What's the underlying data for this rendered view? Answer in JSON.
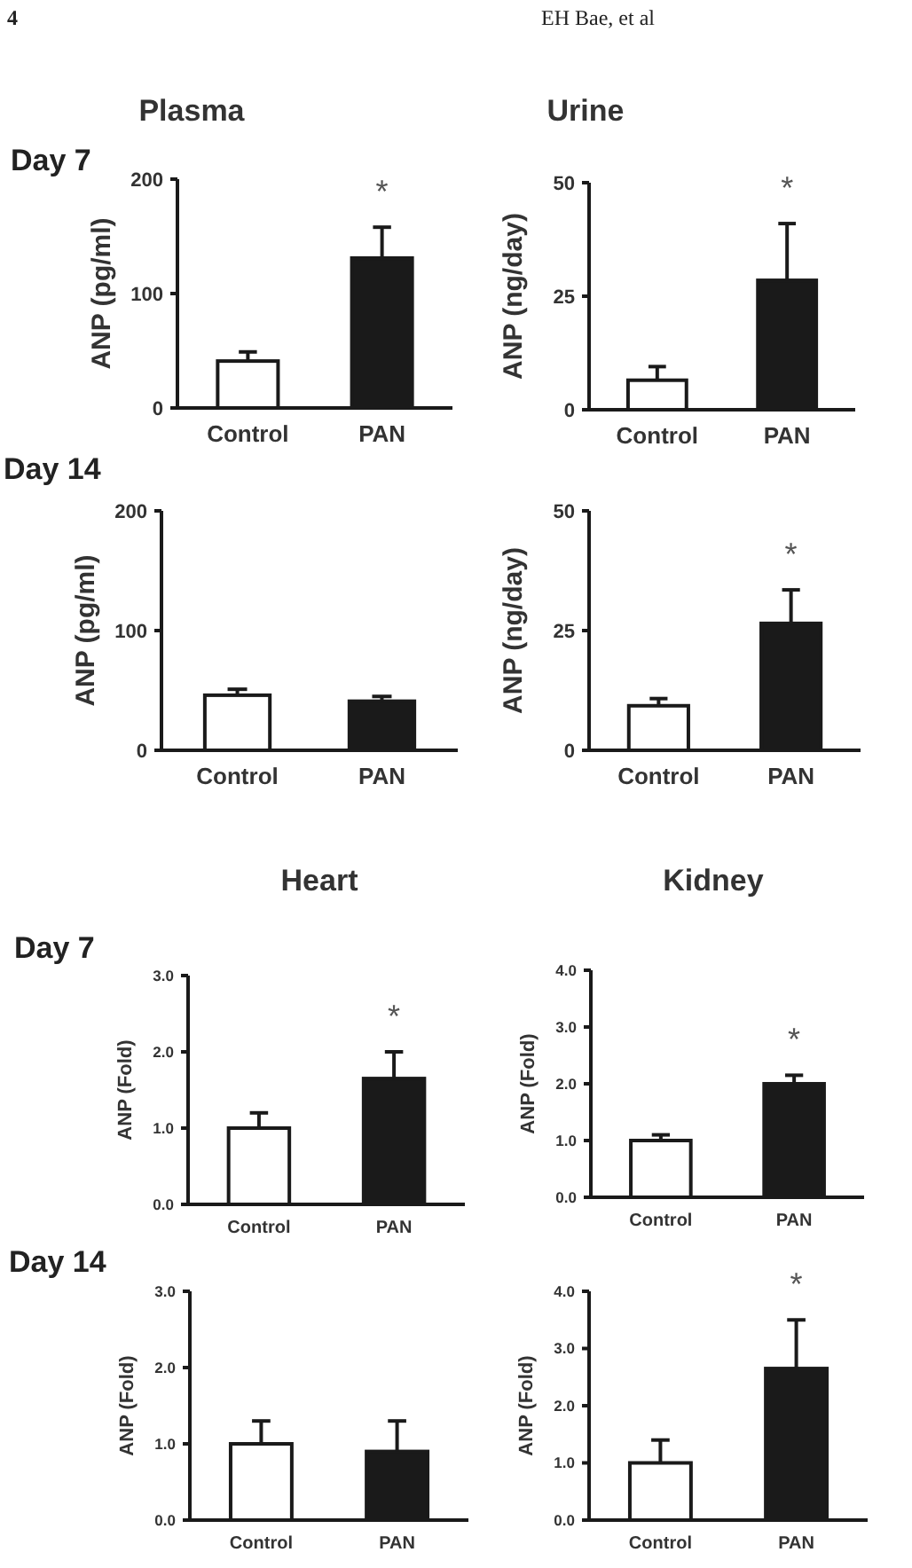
{
  "chart_data": [
    {
      "type": "bar",
      "title": "Plasma",
      "subtitle": "Day 7",
      "ylabel": "ANP (pg/ml)",
      "categories": [
        "Control",
        "PAN"
      ],
      "values": [
        41,
        131
      ],
      "colors": [
        "#ffffff",
        "#1a1a1a"
      ],
      "errors": [
        [
          41,
          49
        ],
        [
          131,
          158
        ]
      ],
      "ylim": [
        0,
        200
      ],
      "yticks": [
        0,
        100,
        200
      ],
      "annotations": [
        "4",
        "EH Bae, et al",
        "*"
      ]
    },
    {
      "type": "bar",
      "title": "Urine",
      "ylabel": "ANP (ng/day)",
      "categories": [
        "Control",
        "PAN"
      ],
      "values": [
        6.5,
        28.5
      ],
      "colors": [
        "#ffffff",
        "#1a1a1a"
      ],
      "errors": [
        [
          6.5,
          9.5
        ],
        [
          28.5,
          41
        ]
      ],
      "ylim": [
        0,
        50
      ],
      "yticks": [
        0,
        25,
        50
      ],
      "annotations": [
        "*"
      ]
    },
    {
      "type": "bar",
      "subtitle": "Day 14",
      "ylabel": "ANP (pg/ml)",
      "categories": [
        "Control",
        "PAN"
      ],
      "values": [
        46,
        41
      ],
      "colors": [
        "#ffffff",
        "#1a1a1a"
      ],
      "errors": [
        [
          46,
          51
        ],
        [
          41,
          45
        ]
      ],
      "ylim": [
        0,
        200
      ],
      "yticks": [
        0,
        100,
        200
      ]
    },
    {
      "type": "bar",
      "ylabel": "ANP (ng/day)",
      "categories": [
        "Control",
        "PAN"
      ],
      "values": [
        9.3,
        26.5
      ],
      "colors": [
        "#ffffff",
        "#1a1a1a"
      ],
      "errors": [
        [
          9.3,
          10.8
        ],
        [
          26.5,
          33.5
        ]
      ],
      "ylim": [
        0,
        50
      ],
      "yticks": [
        0,
        25,
        50
      ],
      "annotations": [
        "*"
      ]
    },
    {
      "type": "bar",
      "title": "Heart",
      "subtitle": "Day 7",
      "ylabel": "ANP (Fold)",
      "categories": [
        "Control",
        "PAN"
      ],
      "values": [
        1.0,
        1.65
      ],
      "colors": [
        "#ffffff",
        "#1a1a1a"
      ],
      "errors": [
        [
          1.0,
          1.2
        ],
        [
          1.65,
          2.0
        ]
      ],
      "ylim": [
        0,
        3
      ],
      "yticks": [
        {
          "value": 0,
          "label": "0.0"
        },
        {
          "value": 1,
          "label": "1.0"
        },
        {
          "value": 2,
          "label": "2.0"
        },
        {
          "value": 3,
          "label": "3.0"
        }
      ],
      "annotations": [
        "*"
      ]
    },
    {
      "type": "bar",
      "title": "Kidney",
      "ylabel": "ANP (Fold)",
      "categories": [
        "Control",
        "PAN"
      ],
      "values": [
        1.0,
        2.0
      ],
      "colors": [
        "#ffffff",
        "#1a1a1a"
      ],
      "errors": [
        [
          1.0,
          1.1
        ],
        [
          2.0,
          2.15
        ]
      ],
      "ylim": [
        0,
        4
      ],
      "yticks": [
        {
          "value": 0,
          "label": "0.0"
        },
        {
          "value": 1,
          "label": "1.0"
        },
        {
          "value": 2,
          "label": "2.0"
        },
        {
          "value": 3,
          "label": "3.0"
        },
        {
          "value": 4,
          "label": "4.0"
        }
      ],
      "annotations": [
        "*"
      ]
    },
    {
      "type": "bar",
      "subtitle": "Day 14",
      "ylabel": "ANP (Fold)",
      "categories": [
        "Control",
        "PAN"
      ],
      "values": [
        1.0,
        0.9
      ],
      "colors": [
        "#ffffff",
        "#1a1a1a"
      ],
      "errors": [
        [
          1.0,
          1.3
        ],
        [
          0.9,
          1.3
        ]
      ],
      "ylim": [
        0,
        3
      ],
      "yticks": [
        {
          "value": 0,
          "label": "0.0"
        },
        {
          "value": 1,
          "label": "1.0"
        },
        {
          "value": 2,
          "label": "2.0"
        },
        {
          "value": 3,
          "label": "3.0"
        }
      ]
    },
    {
      "type": "bar",
      "ylabel": "ANP (Fold)",
      "categories": [
        "Control",
        "PAN"
      ],
      "values": [
        1.0,
        2.65
      ],
      "colors": [
        "#ffffff",
        "#1a1a1a"
      ],
      "errors": [
        [
          1.0,
          1.4
        ],
        [
          2.65,
          3.5
        ]
      ],
      "ylim": [
        0,
        4
      ],
      "yticks": [
        {
          "value": 0,
          "label": "0.0"
        },
        {
          "value": 1,
          "label": "1.0"
        },
        {
          "value": 2,
          "label": "2.0"
        },
        {
          "value": 3,
          "label": "3.0"
        },
        {
          "value": 4,
          "label": "4.0"
        }
      ],
      "annotations": [
        "*"
      ]
    }
  ]
}
